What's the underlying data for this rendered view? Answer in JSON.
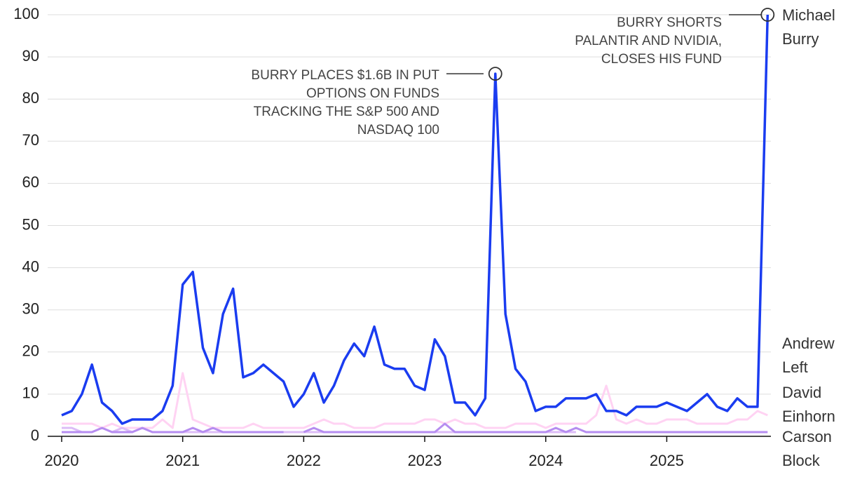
{
  "chart_data": {
    "type": "line",
    "categories": [
      "2020",
      null,
      null,
      null,
      null,
      null,
      null,
      null,
      null,
      null,
      null,
      null,
      "2021",
      null,
      null,
      null,
      null,
      null,
      null,
      null,
      null,
      null,
      null,
      null,
      "2022",
      null,
      null,
      null,
      null,
      null,
      null,
      null,
      null,
      null,
      null,
      null,
      "2023",
      null,
      null,
      null,
      null,
      null,
      null,
      null,
      null,
      null,
      null,
      null,
      "2024",
      null,
      null,
      null,
      null,
      null,
      null,
      null,
      null,
      null,
      null,
      null,
      "2025",
      null,
      null,
      null,
      null,
      null,
      null,
      null,
      null,
      null,
      null
    ],
    "series": [
      {
        "name": "Andrew Left",
        "color": "#ffd3f3",
        "values": [
          3,
          3,
          3,
          3,
          2,
          3,
          2,
          2,
          2,
          2,
          4,
          2,
          15,
          4,
          3,
          2,
          2,
          2,
          2,
          3,
          2,
          2,
          2,
          2,
          2,
          3,
          4,
          3,
          3,
          2,
          2,
          2,
          3,
          3,
          3,
          3,
          4,
          4,
          3,
          4,
          3,
          3,
          2,
          2,
          2,
          3,
          3,
          3,
          2,
          3,
          3,
          3,
          3,
          5,
          12,
          4,
          3,
          4,
          3,
          3,
          4,
          4,
          4,
          3,
          3,
          3,
          3,
          4,
          4,
          6,
          5
        ]
      },
      {
        "name": "David Einhorn",
        "color": "#dcbcf7",
        "values": [
          2,
          2,
          1,
          1,
          2,
          1,
          2,
          1,
          2,
          1,
          1,
          1,
          1,
          1,
          1,
          1,
          1,
          1,
          1,
          1,
          1,
          1,
          1,
          1,
          1,
          1,
          1,
          1,
          1,
          1,
          1,
          1,
          1,
          1,
          1,
          1,
          1,
          1,
          1,
          1,
          1,
          1,
          1,
          1,
          1,
          1,
          1,
          1,
          1,
          1,
          1,
          1,
          null,
          null,
          null,
          null,
          null,
          null,
          null,
          null,
          null,
          null,
          null,
          null,
          null,
          null,
          null,
          null,
          null,
          null,
          null
        ]
      },
      {
        "name": "Carson Block",
        "color": "#b68df0",
        "values": [
          1,
          1,
          1,
          1,
          2,
          1,
          1,
          1,
          2,
          1,
          1,
          1,
          1,
          2,
          1,
          2,
          1,
          1,
          1,
          1,
          1,
          1,
          1,
          null,
          1,
          2,
          1,
          1,
          1,
          1,
          1,
          1,
          1,
          1,
          1,
          1,
          1,
          1,
          3,
          1,
          1,
          1,
          1,
          1,
          1,
          1,
          1,
          1,
          1,
          2,
          1,
          2,
          1,
          1,
          1,
          1,
          1,
          1,
          1,
          1,
          1,
          1,
          1,
          1,
          1,
          1,
          1,
          1,
          1,
          1,
          1
        ]
      },
      {
        "name": "Michael Burry",
        "color": "#1a3cf0",
        "values": [
          5,
          6,
          10,
          17,
          8,
          6,
          3,
          4,
          4,
          4,
          6,
          12,
          36,
          39,
          21,
          15,
          29,
          35,
          14,
          15,
          17,
          15,
          13,
          7,
          10,
          15,
          8,
          12,
          18,
          22,
          19,
          26,
          17,
          16,
          16,
          12,
          11,
          23,
          19,
          8,
          8,
          5,
          9,
          86,
          29,
          16,
          13,
          6,
          7,
          7,
          9,
          9,
          9,
          10,
          6,
          6,
          5,
          7,
          7,
          7,
          8,
          7,
          6,
          8,
          10,
          7,
          6,
          9,
          7,
          7,
          100
        ]
      }
    ],
    "annotations": [
      {
        "text": "BURRY PLACES $1.6B IN PUT OPTIONS ON FUNDS TRACKING THE S&P 500 AND NASDAQ 100"
      },
      {
        "text": "BURRY SHORTS PALANTIR AND NVIDIA, CLOSES HIS FUND"
      }
    ],
    "ylim": [
      0,
      100
    ],
    "yticks": [
      0,
      10,
      20,
      30,
      40,
      50,
      60,
      70,
      80,
      90,
      100
    ],
    "grid": true
  }
}
